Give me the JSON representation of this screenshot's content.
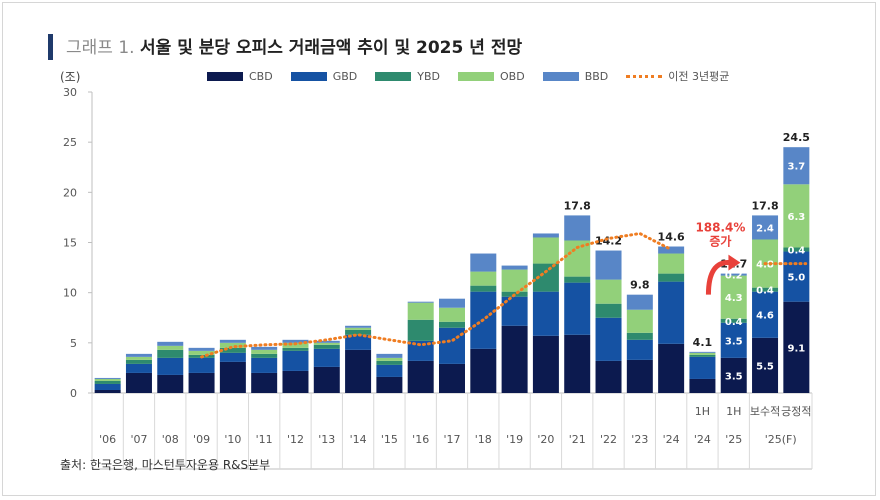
{
  "title": {
    "prefix": "그래프 1.",
    "main": "서울 및 분당 오피스 거래금액 추이 및 2025 년 전망"
  },
  "unit": "(조)",
  "source": "출처: 한국은행, 마스턴투자운용 R&S본부",
  "legend": [
    {
      "name": "CBD",
      "color": "#0c1a4f",
      "kind": "bar"
    },
    {
      "name": "GBD",
      "color": "#1552a3",
      "kind": "bar"
    },
    {
      "name": "YBD",
      "color": "#2e8a6e",
      "kind": "bar"
    },
    {
      "name": "OBD",
      "color": "#92d07a",
      "kind": "bar"
    },
    {
      "name": "BBD",
      "color": "#5886c7",
      "kind": "bar"
    },
    {
      "name": "이전 3년평균",
      "color": "#ef7d22",
      "kind": "line"
    }
  ],
  "annotation": {
    "pct": "188.4%",
    "word": "증가",
    "color": "#e8413a"
  },
  "chart_data": {
    "type": "bar",
    "stacked": true,
    "ylim": [
      0,
      30
    ],
    "yticks": [
      0,
      5,
      10,
      15,
      20,
      25,
      30
    ],
    "categories": [
      "'06",
      "'07",
      "'08",
      "'09",
      "'10",
      "'11",
      "'12",
      "'13",
      "'14",
      "'15",
      "'16",
      "'17",
      "'18",
      "'19",
      "'20",
      "'21",
      "'22",
      "'23",
      "'24",
      "'24 1H",
      "'25 1H",
      "'25(F) 보수적",
      "'25(F) 긍정적"
    ],
    "x_tick_labels": [
      {
        "top": "",
        "bottom": "'06"
      },
      {
        "top": "",
        "bottom": "'07"
      },
      {
        "top": "",
        "bottom": "'08"
      },
      {
        "top": "",
        "bottom": "'09"
      },
      {
        "top": "",
        "bottom": "'10"
      },
      {
        "top": "",
        "bottom": "'11"
      },
      {
        "top": "",
        "bottom": "'12"
      },
      {
        "top": "",
        "bottom": "'13"
      },
      {
        "top": "",
        "bottom": "'14"
      },
      {
        "top": "",
        "bottom": "'15"
      },
      {
        "top": "",
        "bottom": "'16"
      },
      {
        "top": "",
        "bottom": "'17"
      },
      {
        "top": "",
        "bottom": "'18"
      },
      {
        "top": "",
        "bottom": "'19"
      },
      {
        "top": "",
        "bottom": "'20"
      },
      {
        "top": "",
        "bottom": "'21"
      },
      {
        "top": "",
        "bottom": "'22"
      },
      {
        "top": "",
        "bottom": "'23"
      },
      {
        "top": "",
        "bottom": "'24"
      },
      {
        "top": "1H",
        "bottom": "'24"
      },
      {
        "top": "1H",
        "bottom": "'25"
      },
      {
        "top": "보수적",
        "bottom": ""
      },
      {
        "top": "긍정적",
        "bottom": ""
      }
    ],
    "group_label": "'25(F)",
    "series": [
      {
        "name": "CBD",
        "color": "#0c1a4f",
        "values": [
          0.3,
          2.0,
          1.8,
          2.0,
          3.1,
          2.0,
          2.2,
          2.6,
          4.3,
          1.6,
          3.2,
          2.9,
          4.4,
          6.7,
          5.7,
          5.8,
          3.2,
          3.3,
          4.9,
          1.4,
          3.5,
          5.5,
          9.1
        ]
      },
      {
        "name": "GBD",
        "color": "#1552a3",
        "values": [
          0.6,
          0.9,
          1.7,
          1.5,
          0.9,
          1.5,
          2.0,
          1.8,
          1.5,
          1.2,
          2.0,
          3.6,
          5.7,
          2.9,
          4.4,
          5.2,
          4.3,
          2.0,
          6.2,
          2.2,
          3.5,
          4.6,
          5.0
        ]
      },
      {
        "name": "YBD",
        "color": "#2e8a6e",
        "values": [
          0.3,
          0.4,
          0.8,
          0.3,
          0.5,
          0.4,
          0.3,
          0.4,
          0.5,
          0.4,
          2.1,
          0.6,
          0.6,
          0.5,
          2.8,
          0.6,
          1.4,
          0.7,
          0.8,
          0.2,
          0.4,
          0.4,
          0.4
        ]
      },
      {
        "name": "OBD",
        "color": "#92d07a",
        "values": [
          0.2,
          0.3,
          0.4,
          0.4,
          0.5,
          0.4,
          0.5,
          0.2,
          0.2,
          0.3,
          1.7,
          1.4,
          1.4,
          2.2,
          2.6,
          3.6,
          2.4,
          2.3,
          2.0,
          0.2,
          4.3,
          4.8,
          6.3
        ]
      },
      {
        "name": "BBD",
        "color": "#5886c7",
        "values": [
          0.1,
          0.3,
          0.4,
          0.3,
          0.3,
          0.3,
          0.3,
          0.2,
          0.2,
          0.4,
          0.1,
          0.9,
          1.8,
          0.4,
          0.4,
          2.5,
          2.9,
          1.5,
          0.7,
          0.1,
          0.2,
          2.4,
          3.7
        ]
      }
    ],
    "totals": [
      null,
      null,
      null,
      null,
      null,
      null,
      null,
      null,
      null,
      null,
      null,
      null,
      null,
      null,
      null,
      17.8,
      14.2,
      9.8,
      14.6,
      4.1,
      11.7,
      17.8,
      24.5
    ],
    "segment_labels": [
      {
        "cat": 20,
        "series": 0,
        "text": "3.5"
      },
      {
        "cat": 20,
        "series": 1,
        "text": "3.5"
      },
      {
        "cat": 20,
        "series": 2,
        "text": "0.4"
      },
      {
        "cat": 20,
        "series": 3,
        "text": "4.3"
      },
      {
        "cat": 20,
        "series": 4,
        "text": "0.2"
      },
      {
        "cat": 21,
        "series": 0,
        "text": "5.5"
      },
      {
        "cat": 21,
        "series": 1,
        "text": "4.6"
      },
      {
        "cat": 21,
        "series": 2,
        "text": "0.4"
      },
      {
        "cat": 21,
        "series": 3,
        "text": "4.8"
      },
      {
        "cat": 21,
        "series": 4,
        "text": "2.4"
      },
      {
        "cat": 22,
        "series": 0,
        "text": "9.1"
      },
      {
        "cat": 22,
        "series": 1,
        "text": "5.0"
      },
      {
        "cat": 22,
        "series": 2,
        "text": "0.4"
      },
      {
        "cat": 22,
        "series": 3,
        "text": "6.3"
      },
      {
        "cat": 22,
        "series": 4,
        "text": "3.7"
      }
    ],
    "avg_line": {
      "name": "이전 3년평균",
      "color": "#ef7d22",
      "points": [
        {
          "x": 3.0,
          "y": 3.6
        },
        {
          "x": 4.0,
          "y": 4.6
        },
        {
          "x": 5.0,
          "y": 4.8
        },
        {
          "x": 6.0,
          "y": 4.9
        },
        {
          "x": 7.0,
          "y": 5.3
        },
        {
          "x": 8.0,
          "y": 5.8
        },
        {
          "x": 9.0,
          "y": 5.3
        },
        {
          "x": 10.0,
          "y": 4.8
        },
        {
          "x": 11.0,
          "y": 5.2
        },
        {
          "x": 12.0,
          "y": 7.3
        },
        {
          "x": 13.0,
          "y": 9.8
        },
        {
          "x": 14.0,
          "y": 12.1
        },
        {
          "x": 15.0,
          "y": 14.5
        },
        {
          "x": 16.0,
          "y": 15.4
        },
        {
          "x": 17.0,
          "y": 15.9
        },
        {
          "x": 18.0,
          "y": 14.3
        }
      ],
      "forecast_segment": [
        {
          "x": 21.0,
          "y": 12.9
        },
        {
          "x": 22.3,
          "y": 12.9
        }
      ]
    }
  }
}
